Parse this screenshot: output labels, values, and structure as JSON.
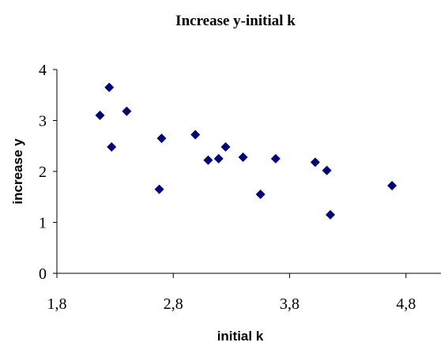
{
  "chart_data": {
    "type": "scatter",
    "title": "Increase y-initial k",
    "xlabel": "initial k",
    "ylabel": "increase y",
    "xlim": [
      1.8,
      5.1
    ],
    "ylim": [
      0,
      4
    ],
    "x_ticks": [
      1.8,
      2.8,
      3.8,
      4.8
    ],
    "x_tick_labels": [
      "1,8",
      "2,8",
      "3,8",
      "4,8"
    ],
    "y_ticks": [
      0,
      1,
      2,
      3,
      4
    ],
    "y_tick_labels": [
      "0",
      "1",
      "2",
      "3",
      "4"
    ],
    "grid": false,
    "legend": "none",
    "marker": "diamond",
    "marker_color": "#000080",
    "series": [
      {
        "x": [
          2.17,
          2.25,
          2.27,
          2.4,
          2.68,
          2.7,
          2.99,
          3.1,
          3.19,
          3.25,
          3.4,
          3.55,
          3.68,
          4.02,
          4.12,
          4.15,
          4.68
        ],
        "y": [
          3.1,
          3.65,
          2.48,
          3.18,
          1.65,
          2.65,
          2.72,
          2.22,
          2.25,
          2.48,
          2.28,
          1.55,
          2.25,
          2.18,
          2.02,
          1.15,
          1.72
        ]
      }
    ]
  }
}
